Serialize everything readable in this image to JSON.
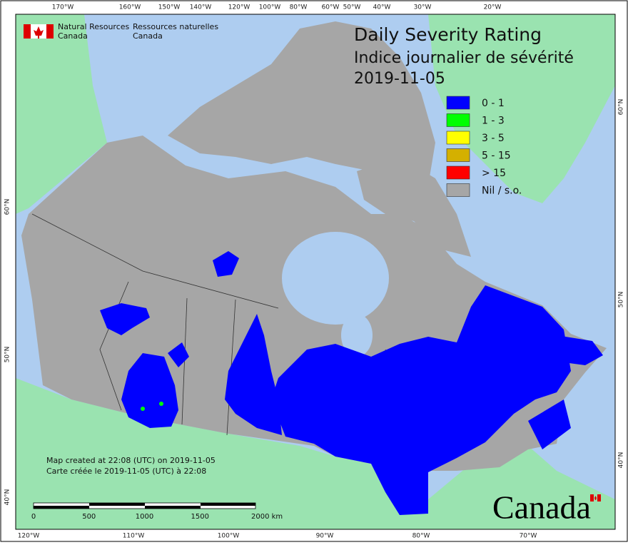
{
  "header": {
    "agency_en": "Natural Resources",
    "country_en": "Canada",
    "agency_fr": "Ressources naturelles",
    "country_fr": "Canada"
  },
  "title": {
    "line1": "Daily Severity Rating",
    "line2": "Indice journalier de sévérité",
    "date": "2019-11-05"
  },
  "legend": [
    {
      "label": "0 - 1",
      "color": "#0000ff"
    },
    {
      "label": "1 - 3",
      "color": "#00ff00"
    },
    {
      "label": "3 - 5",
      "color": "#ffff00"
    },
    {
      "label": "5 - 15",
      "color": "#d4b000"
    },
    {
      "label": "> 15",
      "color": "#ff0000"
    },
    {
      "label": "Nil / s.o.",
      "color": "#a6a6a6"
    }
  ],
  "graticule": {
    "top": [
      "170°W",
      "160°W",
      "150°W",
      "140°W",
      "120°W",
      "100°W",
      "80°W",
      "60°W",
      "50°W",
      "40°W",
      "30°W",
      "20°W"
    ],
    "bottom": [
      "120°W",
      "110°W",
      "100°W",
      "90°W",
      "80°W",
      "70°W"
    ],
    "left": [
      "60°N",
      "50°N",
      "40°N"
    ],
    "right": [
      "60°N",
      "50°N",
      "40°N"
    ]
  },
  "credits": [
    "Map created at 22:08 (UTC) on 2019-11-05",
    "Carte créée le 2019-11-05 (UTC) à 22:08"
  ],
  "scale_bar": [
    "0",
    "500",
    "1000",
    "1500",
    "2000 km"
  ],
  "wordmark": "Canada"
}
